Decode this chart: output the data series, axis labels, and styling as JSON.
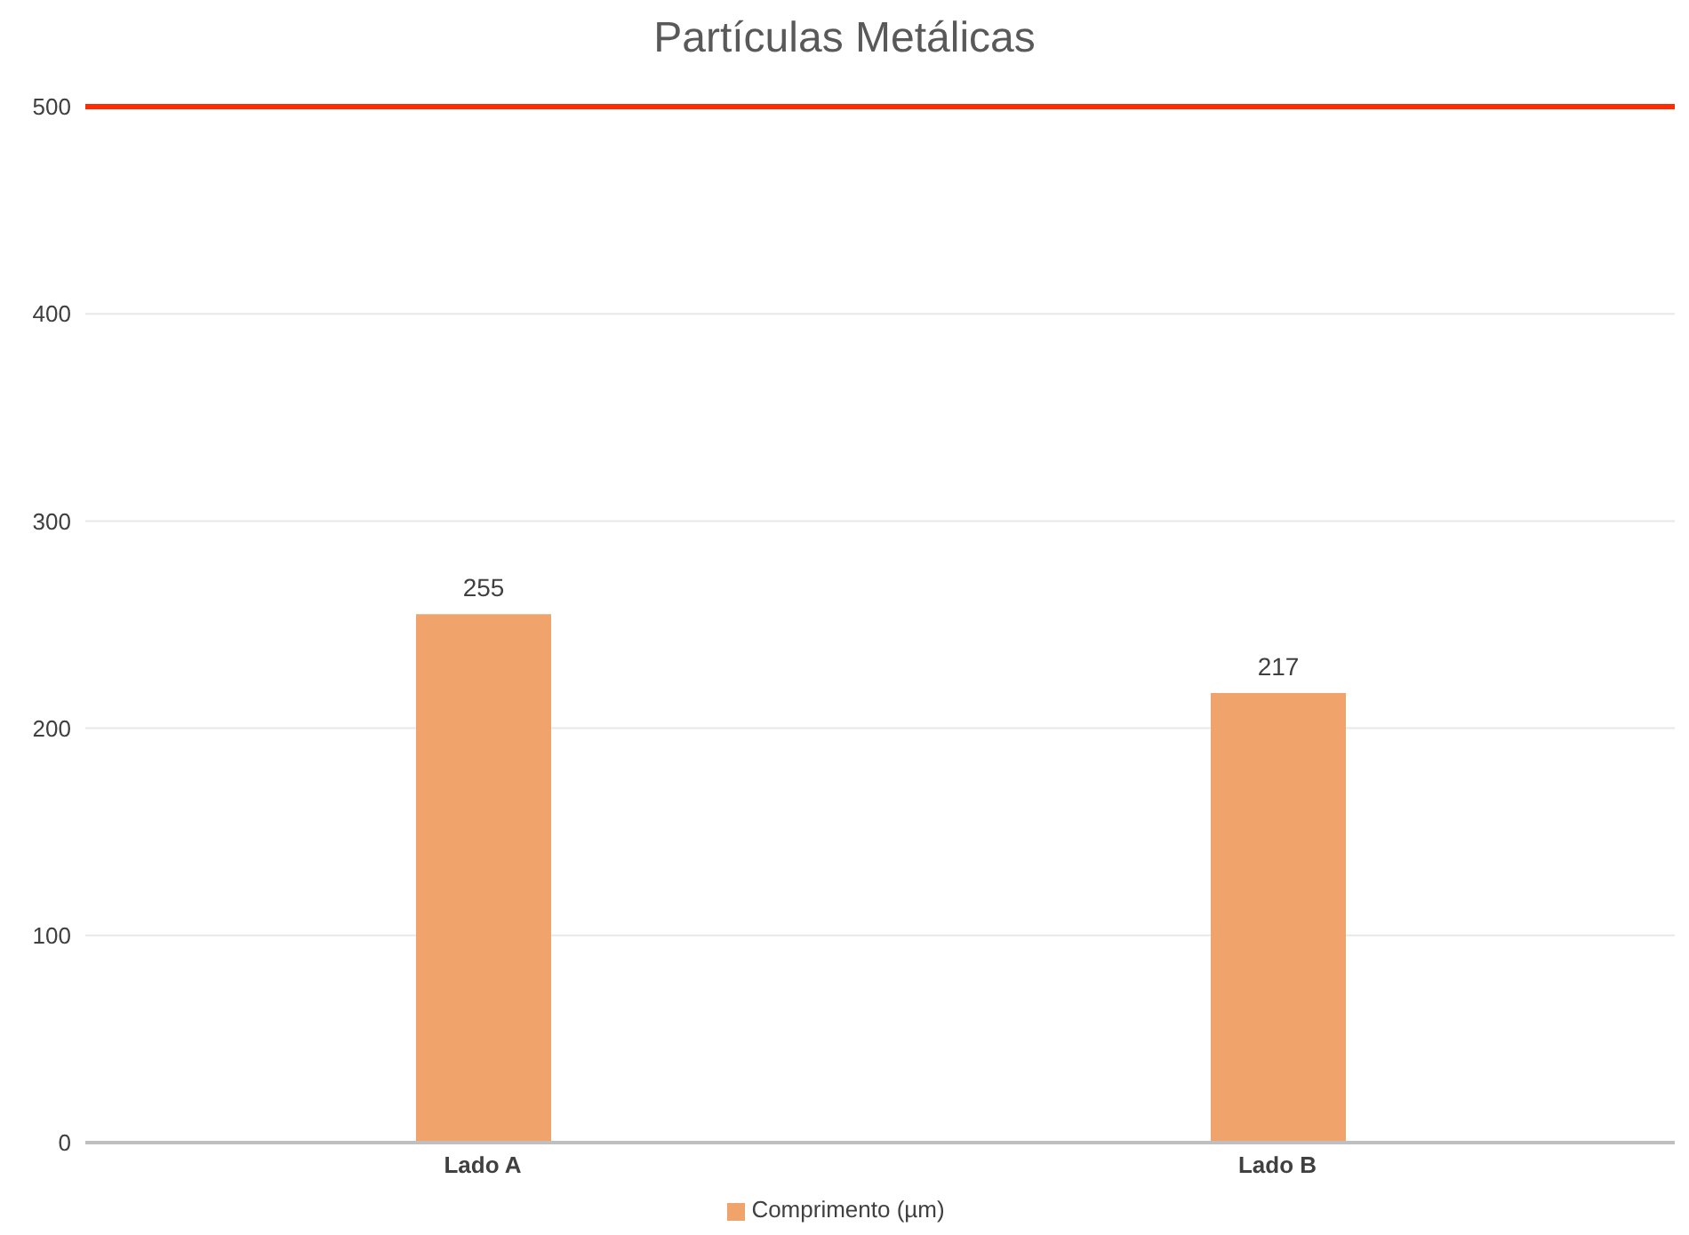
{
  "chart_data": {
    "type": "bar",
    "title": "Partículas Metálicas",
    "categories": [
      "Lado A",
      "Lado B"
    ],
    "series": [
      {
        "name": "Comprimento (µm)",
        "color": "#f0a46c",
        "values": [
          255,
          217
        ]
      }
    ],
    "ylim": [
      0,
      500
    ],
    "yticks": [
      0,
      100,
      200,
      300,
      400,
      500
    ],
    "grid": "y",
    "legend": "bottom",
    "data_labels": true,
    "ref_lines": [
      {
        "axis": "y",
        "value": 500,
        "color": "#ff2a00"
      }
    ]
  }
}
